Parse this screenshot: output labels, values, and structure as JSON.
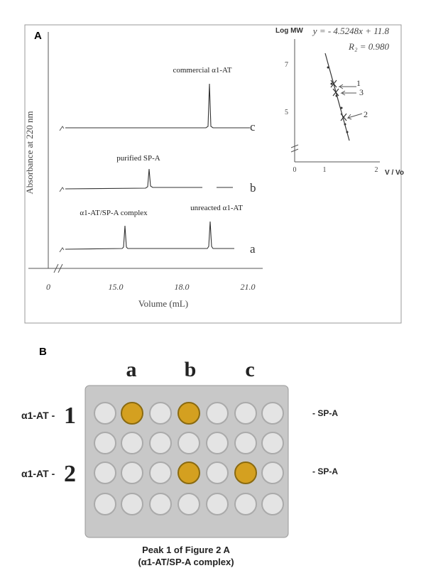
{
  "panel_a": {
    "label": "A",
    "chromatogram": {
      "y_label": "Absorbance at 220 nm",
      "x_label": "Volume (mL)",
      "x_tick_labels": [
        "0",
        "15.0",
        "18.0",
        "21.0"
      ],
      "trace_labels": [
        "c",
        "b",
        "a"
      ],
      "annotations": [
        "commercial α1-AT",
        "purified SP-A",
        "α1-AT/SP-A complex",
        "unreacted α1-AT"
      ]
    },
    "inset": {
      "y_label": "Log MW",
      "equation": "y = - 4.5248x + 11.8",
      "r_squared": "R₂ = 0.980",
      "y_tick_labels": [
        "7",
        "5"
      ],
      "x_tick_labels": [
        "0",
        "1",
        "2"
      ],
      "x_label": "V / Vo",
      "arrow_labels": [
        "1",
        "3",
        "2"
      ]
    }
  },
  "panel_b": {
    "label": "B",
    "column_labels": [
      "a",
      "b",
      "c"
    ],
    "rows": [
      {
        "prefix": "α1-AT -",
        "number": "1",
        "suffix": "- SP-A"
      },
      {
        "prefix": "α1-AT -",
        "number": "2",
        "suffix": "- SP-A"
      }
    ],
    "caption": [
      "Peak 1 of Figure 2 A",
      "(α1-AT/SP-A complex)"
    ]
  }
}
